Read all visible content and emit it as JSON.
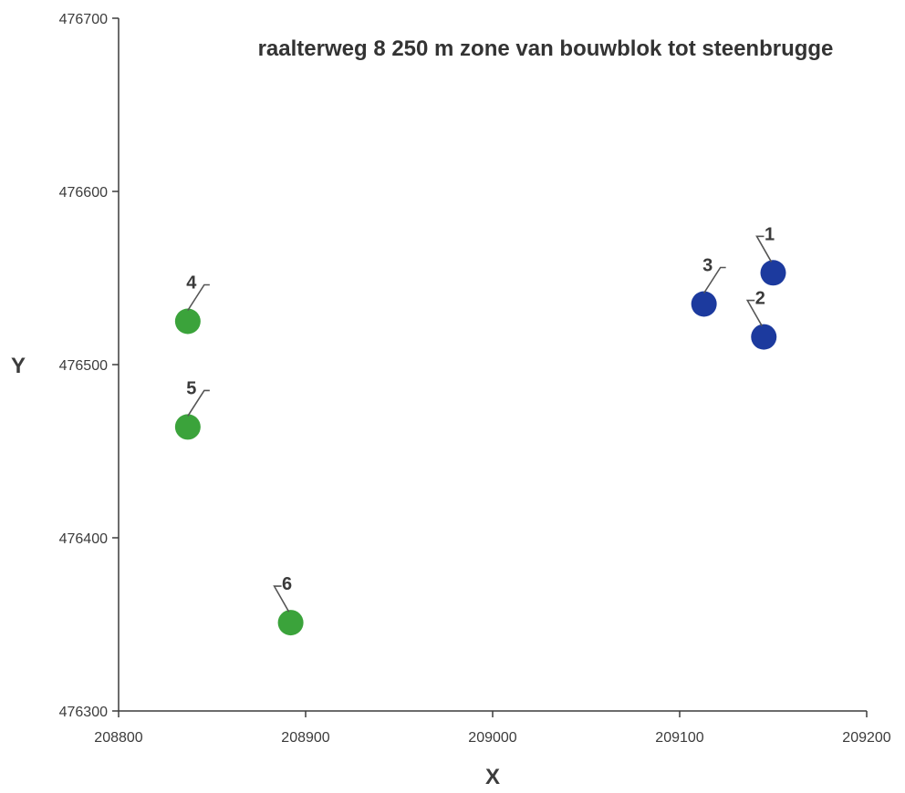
{
  "chart_data": {
    "type": "scatter",
    "title": "raalterweg 8 250 m zone van bouwblok tot steenbrugge",
    "xlabel": "X",
    "ylabel": "Y",
    "xlim": [
      208800,
      209200
    ],
    "ylim": [
      476300,
      476700
    ],
    "x_ticks": [
      208800,
      208900,
      209000,
      209100,
      209200
    ],
    "y_ticks": [
      476300,
      476400,
      476500,
      476600,
      476700
    ],
    "x_tick_labels": [
      "208800",
      "208900",
      "209000",
      "209100",
      "209200"
    ],
    "y_tick_labels": [
      "476300",
      "476400",
      "476500",
      "476600",
      "476700"
    ],
    "grid": false,
    "points": [
      {
        "label": "1",
        "x": 209150,
        "y": 476553,
        "color": "#1c3a9e",
        "label_side": "upper-left"
      },
      {
        "label": "2",
        "x": 209145,
        "y": 476516,
        "color": "#1c3a9e",
        "label_side": "upper-left"
      },
      {
        "label": "3",
        "x": 209113,
        "y": 476535,
        "color": "#1c3a9e",
        "label_side": "upper-right"
      },
      {
        "label": "4",
        "x": 208837,
        "y": 476525,
        "color": "#3ba33b",
        "label_side": "upper-right"
      },
      {
        "label": "5",
        "x": 208837,
        "y": 476464,
        "color": "#3ba33b",
        "label_side": "upper-right"
      },
      {
        "label": "6",
        "x": 208892,
        "y": 476351,
        "color": "#3ba33b",
        "label_side": "upper-left"
      }
    ],
    "axis_color": "#3c3c3c",
    "text_color": "#3c3c3c"
  }
}
